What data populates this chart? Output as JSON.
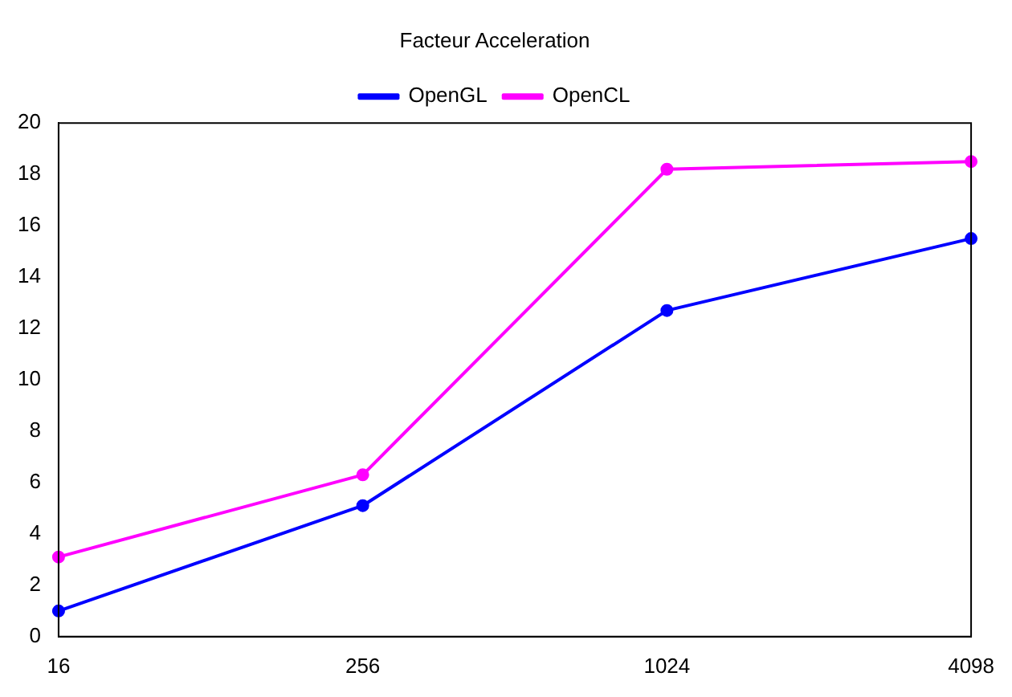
{
  "chart_data": {
    "type": "line",
    "title": "Facteur Acceleration",
    "categories": [
      "16",
      "256",
      "1024",
      "4098"
    ],
    "series": [
      {
        "name": "OpenGL",
        "color": "#0000ff",
        "values": [
          1.0,
          5.1,
          12.7,
          15.5
        ]
      },
      {
        "name": "OpenCL",
        "color": "#ff00ff",
        "values": [
          3.1,
          6.3,
          18.2,
          18.5
        ]
      }
    ],
    "ylim": [
      0,
      20
    ],
    "yticks": [
      0,
      2,
      4,
      6,
      8,
      10,
      12,
      14,
      16,
      18,
      20
    ],
    "grid": false,
    "legend": "top",
    "marker": "circle",
    "line_style": "solid"
  }
}
